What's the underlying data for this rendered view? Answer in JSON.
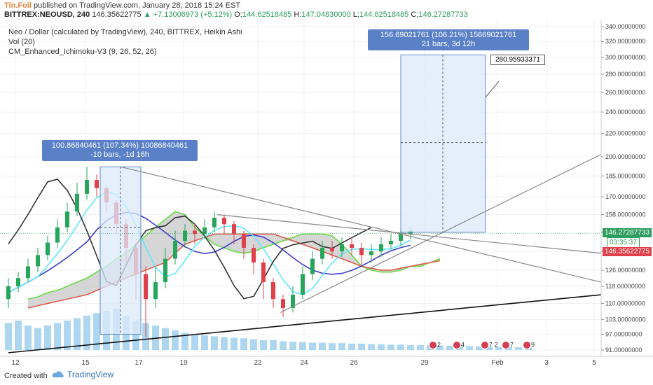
{
  "header": {
    "author": "Tin.Foil",
    "published_text": "published on TradingView.com, January 28, 2018 15:24 EST",
    "symbol": "BITTREX:NEOUSD, 240",
    "last": "146.35622775",
    "change": "+7.13006973 (+5.12%)",
    "open_label": "O:",
    "open": "144.62518485",
    "high_label": "H:",
    "high": "147.04830000",
    "low_label": "L:",
    "low": "144.62518485",
    "close_label": "C:",
    "close": "146.27287733"
  },
  "legend": {
    "main": "Neo / Dollar (calculated by TradingView), 240, BITTREX, Heikin Ashi",
    "vol": "Vol (20)",
    "ichimoku": "CM_Enhanced_Ichimoku-V3 (9, 26, 52, 26)"
  },
  "measure_left": {
    "line1": "100.86840461 (107.34%) 10086840461",
    "line2": "-10 bars, -1d 16h"
  },
  "measure_right": {
    "line1": "156.69021761 (106.21%) 15669021761",
    "line2": "21 bars, 3d 12h"
  },
  "callout": "280.95933371",
  "price_labels": {
    "current": "146.27287733",
    "countdown": "03:35:37",
    "prev": "146.35622775"
  },
  "event_badges": [
    "2",
    "4",
    "7",
    "2",
    "7",
    "9"
  ],
  "footer": {
    "created_with": "Created with",
    "brand": "TradingView"
  },
  "colors": {
    "candle_up": "#26a65b",
    "candle_down": "#e0404a",
    "tenkan": "#5fe8ff",
    "kijun": "#3c3cd0",
    "chikou": "#333333",
    "cloud": "#c8c8c8",
    "cloud_bull_edge": "#66dd44",
    "cloud_bear_edge": "#e05a4a",
    "volume": "#9fd0ee",
    "measure_box": "#dce9fb",
    "label_green": "#2e9e5e",
    "label_red": "#e0404a"
  },
  "chart_data": {
    "type": "candlestick",
    "y_axis": {
      "scale": "log",
      "ticks": [
        "340.00000000",
        "320.00000000",
        "300.00000000",
        "280.00000000",
        "260.00000000",
        "240.00000000",
        "220.00000000",
        "200.00000000",
        "185.00000000",
        "170.00000000",
        "158.00000000",
        "147.00000000",
        "136.00000000",
        "126.00000000",
        "118.00000000",
        "110.00000000",
        "103.00000000",
        "97.00000000",
        "91.00000000"
      ],
      "tick_values": [
        340,
        320,
        300,
        280,
        260,
        240,
        220,
        200,
        185,
        170,
        158,
        147,
        136,
        126,
        118,
        110,
        103,
        97,
        91
      ]
    },
    "x_axis": {
      "ticks": [
        "12",
        "15",
        "17",
        "19",
        "22",
        "24",
        "26",
        "29",
        "Feb",
        "3",
        "5"
      ]
    },
    "heikin_ashi_candles": [
      {
        "o": 112,
        "c": 118,
        "h": 122,
        "l": 108
      },
      {
        "o": 118,
        "c": 122,
        "h": 125,
        "l": 115
      },
      {
        "o": 122,
        "c": 128,
        "h": 132,
        "l": 120
      },
      {
        "o": 128,
        "c": 134,
        "h": 138,
        "l": 125
      },
      {
        "o": 134,
        "c": 141,
        "h": 145,
        "l": 131
      },
      {
        "o": 141,
        "c": 150,
        "h": 155,
        "l": 138
      },
      {
        "o": 150,
        "c": 160,
        "h": 166,
        "l": 147
      },
      {
        "o": 160,
        "c": 172,
        "h": 180,
        "l": 157
      },
      {
        "o": 172,
        "c": 182,
        "h": 192,
        "l": 168
      },
      {
        "o": 182,
        "c": 176,
        "h": 186,
        "l": 170
      },
      {
        "o": 176,
        "c": 166,
        "h": 178,
        "l": 160
      },
      {
        "o": 166,
        "c": 152,
        "h": 168,
        "l": 146
      },
      {
        "o": 152,
        "c": 138,
        "h": 155,
        "l": 130
      },
      {
        "o": 138,
        "c": 124,
        "h": 140,
        "l": 112
      },
      {
        "o": 124,
        "c": 112,
        "h": 128,
        "l": 96
      },
      {
        "o": 112,
        "c": 120,
        "h": 128,
        "l": 108
      },
      {
        "o": 120,
        "c": 132,
        "h": 138,
        "l": 117
      },
      {
        "o": 132,
        "c": 142,
        "h": 148,
        "l": 129
      },
      {
        "o": 142,
        "c": 148,
        "h": 152,
        "l": 138
      },
      {
        "o": 148,
        "c": 146,
        "h": 152,
        "l": 140
      },
      {
        "o": 146,
        "c": 150,
        "h": 155,
        "l": 143
      },
      {
        "o": 150,
        "c": 156,
        "h": 160,
        "l": 147
      },
      {
        "o": 156,
        "c": 152,
        "h": 158,
        "l": 146
      },
      {
        "o": 152,
        "c": 146,
        "h": 154,
        "l": 140
      },
      {
        "o": 146,
        "c": 138,
        "h": 148,
        "l": 132
      },
      {
        "o": 138,
        "c": 130,
        "h": 140,
        "l": 124
      },
      {
        "o": 130,
        "c": 120,
        "h": 132,
        "l": 112
      },
      {
        "o": 120,
        "c": 112,
        "h": 122,
        "l": 108
      },
      {
        "o": 112,
        "c": 108,
        "h": 114,
        "l": 104
      },
      {
        "o": 108,
        "c": 114,
        "h": 118,
        "l": 106
      },
      {
        "o": 114,
        "c": 124,
        "h": 128,
        "l": 112
      },
      {
        "o": 124,
        "c": 132,
        "h": 136,
        "l": 121
      },
      {
        "o": 132,
        "c": 138,
        "h": 142,
        "l": 129
      },
      {
        "o": 138,
        "c": 136,
        "h": 142,
        "l": 132
      },
      {
        "o": 136,
        "c": 140,
        "h": 144,
        "l": 133
      },
      {
        "o": 140,
        "c": 138,
        "h": 143,
        "l": 134
      },
      {
        "o": 138,
        "c": 134,
        "h": 141,
        "l": 128
      },
      {
        "o": 134,
        "c": 136,
        "h": 140,
        "l": 130
      },
      {
        "o": 136,
        "c": 140,
        "h": 144,
        "l": 133
      },
      {
        "o": 140,
        "c": 142,
        "h": 146,
        "l": 137
      },
      {
        "o": 142,
        "c": 146,
        "h": 149,
        "l": 139
      },
      {
        "o": 146,
        "c": 148,
        "h": 150,
        "l": 143
      }
    ],
    "volume_relative": [
      0.55,
      0.6,
      0.5,
      0.45,
      0.5,
      0.55,
      0.6,
      0.65,
      0.7,
      0.75,
      0.8,
      0.85,
      0.7,
      0.6,
      0.55,
      0.5,
      0.45,
      0.4,
      0.35,
      0.3,
      0.3,
      0.28,
      0.26,
      0.25,
      0.24,
      0.22,
      0.2,
      0.2,
      0.18,
      0.17,
      0.16,
      0.15,
      0.15,
      0.14,
      0.14,
      0.13,
      0.13,
      0.12,
      0.12,
      0.11,
      0.11,
      0.1
    ],
    "measure_left": {
      "from": 97,
      "to": 192,
      "change": "100.86840461 (107.34%)",
      "bars": -10
    },
    "measure_right": {
      "from": 147,
      "to": 303,
      "change": "156.69021761 (106.21%)",
      "bars": 21
    }
  }
}
